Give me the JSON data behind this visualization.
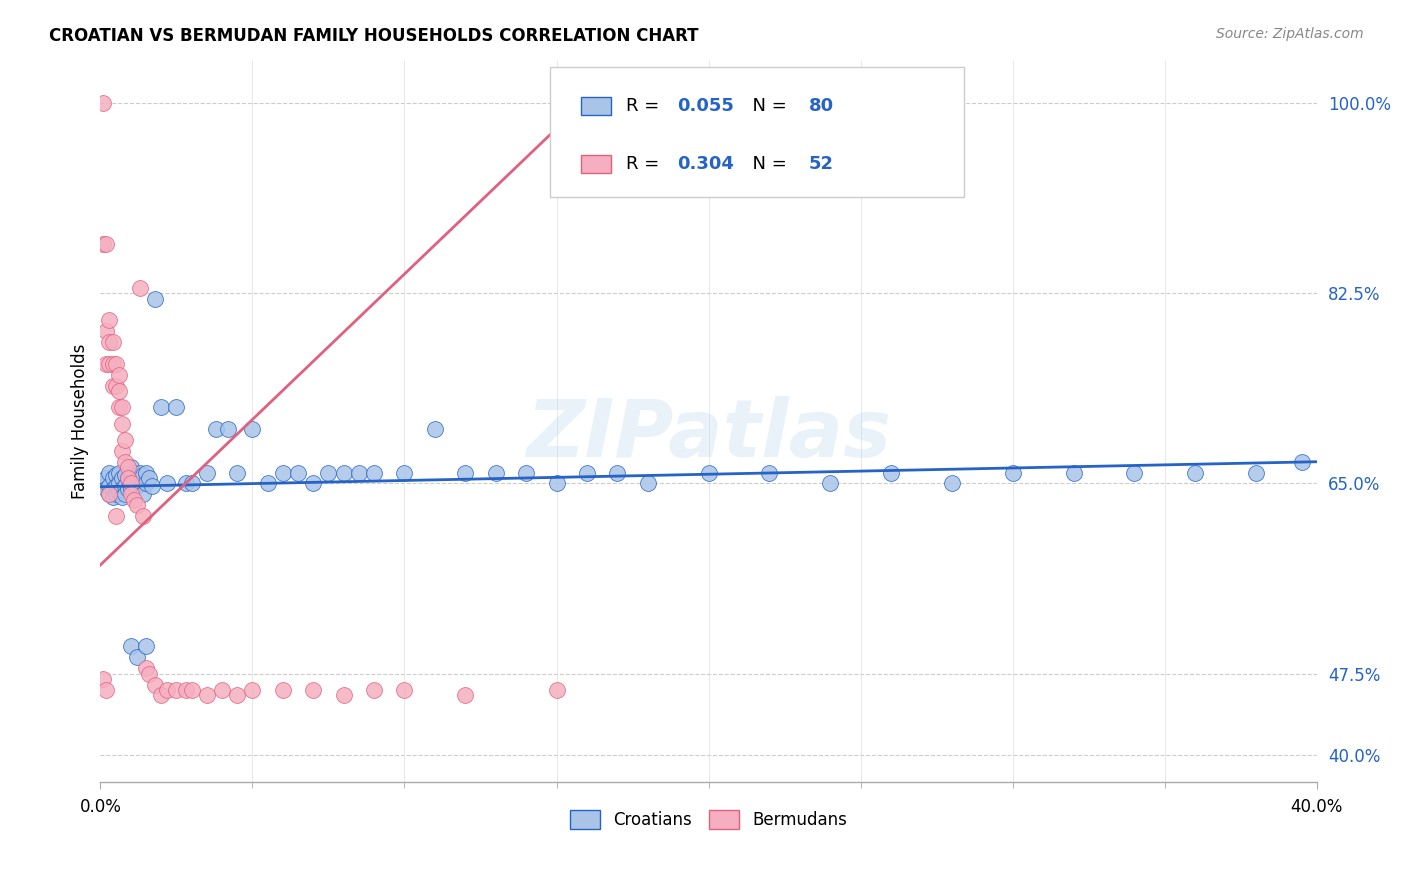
{
  "title": "CROATIAN VS BERMUDAN FAMILY HOUSEHOLDS CORRELATION CHART",
  "source": "Source: ZipAtlas.com",
  "ylabel": "Family Households",
  "legend_label_blue": "Croatians",
  "legend_label_pink": "Bermudans",
  "blue_color": "#aac4e8",
  "pink_color": "#f5afc0",
  "blue_line_color": "#2563c7",
  "pink_line_color": "#e06080",
  "watermark": "ZIPatlas",
  "blue_R": "0.055",
  "blue_N": "80",
  "pink_R": "0.304",
  "pink_N": "52",
  "xlim": [
    0.0,
    0.4
  ],
  "ylim": [
    0.375,
    1.04
  ],
  "yticks": [
    0.4,
    0.475,
    0.65,
    0.825,
    1.0
  ],
  "ytick_labels": [
    "40.0%",
    "47.5%",
    "65.0%",
    "82.5%",
    "100.0%"
  ],
  "blue_scatter_x": [
    0.001,
    0.002,
    0.002,
    0.003,
    0.003,
    0.003,
    0.004,
    0.004,
    0.004,
    0.005,
    0.005,
    0.005,
    0.006,
    0.006,
    0.006,
    0.007,
    0.007,
    0.007,
    0.008,
    0.008,
    0.008,
    0.009,
    0.009,
    0.01,
    0.01,
    0.01,
    0.011,
    0.011,
    0.012,
    0.012,
    0.013,
    0.013,
    0.014,
    0.014,
    0.015,
    0.015,
    0.016,
    0.017,
    0.018,
    0.02,
    0.022,
    0.025,
    0.028,
    0.03,
    0.035,
    0.038,
    0.042,
    0.045,
    0.05,
    0.055,
    0.06,
    0.065,
    0.07,
    0.075,
    0.08,
    0.085,
    0.09,
    0.1,
    0.11,
    0.12,
    0.13,
    0.14,
    0.15,
    0.16,
    0.17,
    0.18,
    0.2,
    0.22,
    0.24,
    0.26,
    0.28,
    0.3,
    0.32,
    0.34,
    0.36,
    0.38,
    0.395,
    0.01,
    0.012,
    0.015
  ],
  "blue_scatter_y": [
    0.65,
    0.655,
    0.645,
    0.66,
    0.648,
    0.64,
    0.655,
    0.645,
    0.638,
    0.658,
    0.648,
    0.64,
    0.66,
    0.65,
    0.642,
    0.655,
    0.645,
    0.638,
    0.658,
    0.648,
    0.64,
    0.655,
    0.645,
    0.665,
    0.655,
    0.645,
    0.66,
    0.65,
    0.658,
    0.648,
    0.66,
    0.65,
    0.658,
    0.64,
    0.66,
    0.65,
    0.655,
    0.648,
    0.82,
    0.72,
    0.65,
    0.72,
    0.65,
    0.65,
    0.66,
    0.7,
    0.7,
    0.66,
    0.7,
    0.65,
    0.66,
    0.66,
    0.65,
    0.66,
    0.66,
    0.66,
    0.66,
    0.66,
    0.7,
    0.66,
    0.66,
    0.66,
    0.65,
    0.66,
    0.66,
    0.65,
    0.66,
    0.66,
    0.65,
    0.66,
    0.65,
    0.66,
    0.66,
    0.66,
    0.66,
    0.66,
    0.67,
    0.5,
    0.49,
    0.5
  ],
  "pink_scatter_x": [
    0.001,
    0.001,
    0.002,
    0.002,
    0.002,
    0.003,
    0.003,
    0.003,
    0.003,
    0.004,
    0.004,
    0.004,
    0.005,
    0.005,
    0.005,
    0.006,
    0.006,
    0.006,
    0.007,
    0.007,
    0.007,
    0.008,
    0.008,
    0.009,
    0.009,
    0.01,
    0.01,
    0.011,
    0.012,
    0.013,
    0.014,
    0.015,
    0.016,
    0.018,
    0.02,
    0.022,
    0.025,
    0.028,
    0.03,
    0.035,
    0.04,
    0.045,
    0.05,
    0.06,
    0.07,
    0.08,
    0.09,
    0.1,
    0.12,
    0.15,
    0.001,
    0.002
  ],
  "pink_scatter_y": [
    1.0,
    0.87,
    0.87,
    0.79,
    0.76,
    0.8,
    0.78,
    0.76,
    0.64,
    0.78,
    0.76,
    0.74,
    0.76,
    0.74,
    0.62,
    0.75,
    0.735,
    0.72,
    0.72,
    0.705,
    0.68,
    0.69,
    0.67,
    0.665,
    0.655,
    0.65,
    0.64,
    0.635,
    0.63,
    0.83,
    0.62,
    0.48,
    0.475,
    0.465,
    0.455,
    0.46,
    0.46,
    0.46,
    0.46,
    0.455,
    0.46,
    0.455,
    0.46,
    0.46,
    0.46,
    0.455,
    0.46,
    0.46,
    0.455,
    0.46,
    0.47,
    0.46
  ],
  "blue_trend_x": [
    0.0,
    0.4
  ],
  "blue_trend_y": [
    0.647,
    0.67
  ],
  "pink_trend_x": [
    0.0,
    0.155
  ],
  "pink_trend_y": [
    0.575,
    0.99
  ]
}
